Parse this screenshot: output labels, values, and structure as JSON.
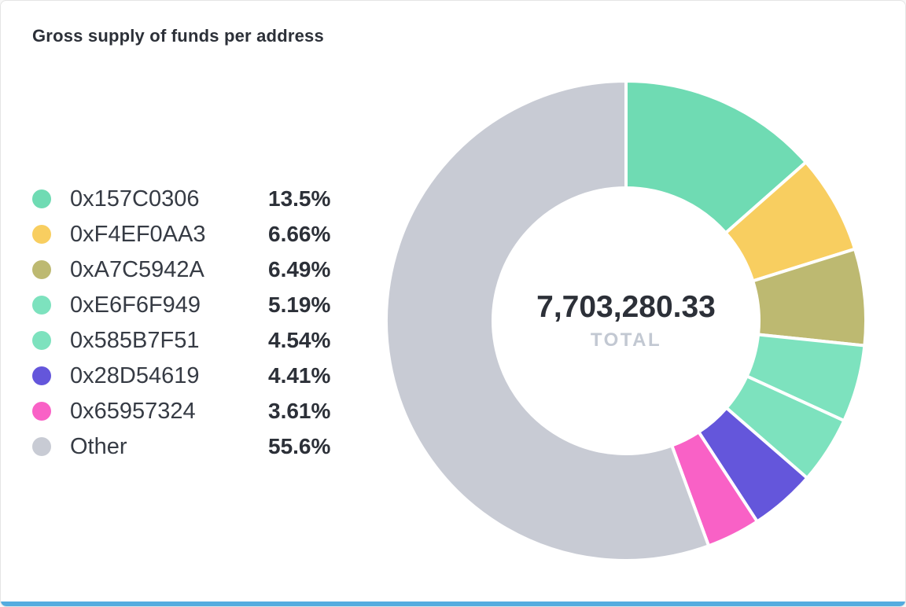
{
  "card": {
    "title": "Gross supply of funds per address"
  },
  "chart_data": {
    "type": "pie",
    "donut": true,
    "title": "Gross supply of funds per address",
    "center_total": "7,703,280.33",
    "center_caption": "TOTAL",
    "start_angle_deg": 0,
    "direction": "clockwise",
    "legend_position": "left",
    "colors": {
      "bottom_bar": "#54ACDF"
    },
    "slices": [
      {
        "label": "0x157C0306",
        "value": 13.5,
        "pct": "13.5%",
        "color": "#6FDBB3"
      },
      {
        "label": "0xF4EF0AA3",
        "value": 6.66,
        "pct": "6.66%",
        "color": "#F8CE60"
      },
      {
        "label": "0xA7C5942A",
        "value": 6.49,
        "pct": "6.49%",
        "color": "#BDB971"
      },
      {
        "label": "0xE6F6F949",
        "value": 5.19,
        "pct": "5.19%",
        "color": "#7DE2BE"
      },
      {
        "label": "0x585B7F51",
        "value": 4.54,
        "pct": "4.54%",
        "color": "#7DE2BE"
      },
      {
        "label": "0x28D54619",
        "value": 4.41,
        "pct": "4.41%",
        "color": "#6456DB"
      },
      {
        "label": "0x65957324",
        "value": 3.61,
        "pct": "3.61%",
        "color": "#F961C6"
      },
      {
        "label": "Other",
        "value": 55.6,
        "pct": "55.6%",
        "color": "#C8CBD4"
      }
    ]
  }
}
